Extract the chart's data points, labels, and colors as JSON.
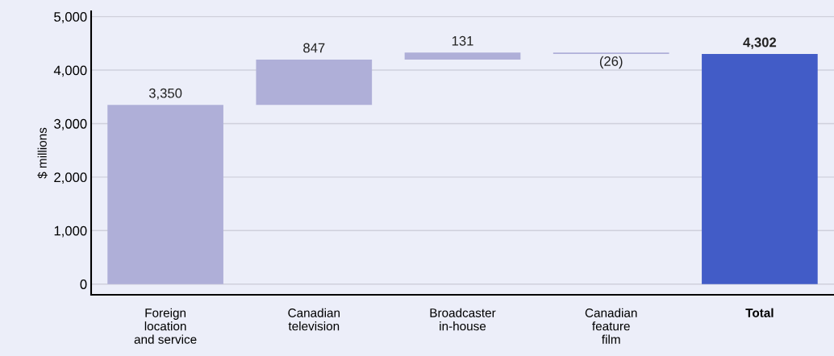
{
  "chart_data": {
    "type": "bar",
    "ylabel": "$ millions",
    "categories": [
      "Foreign\nlocation\nand service",
      "Canadian\ntelevision",
      "Broadcaster\nin-house",
      "Canadian\nfeature\nfilm",
      "Total"
    ],
    "values": [
      3350,
      847,
      131,
      -26,
      4302
    ],
    "base": [
      0,
      3350,
      4197,
      4328,
      0
    ],
    "colors": [
      "#afafd8",
      "#afafd8",
      "#afafd8",
      "#afafd8",
      "#425cc7"
    ],
    "value_labels": [
      "3,350",
      "847",
      "131",
      "(26)",
      "4,302"
    ],
    "ylim": [
      -200,
      5100
    ],
    "yticks": [
      {
        "value": 0,
        "label": "0"
      },
      {
        "value": 1000,
        "label": "1,000"
      },
      {
        "value": 2000,
        "label": "2,000"
      },
      {
        "value": 3000,
        "label": "3,000"
      },
      {
        "value": 4000,
        "label": "4,000"
      },
      {
        "value": 5000,
        "label": "5,000"
      }
    ],
    "grid": "y",
    "legend": false
  }
}
